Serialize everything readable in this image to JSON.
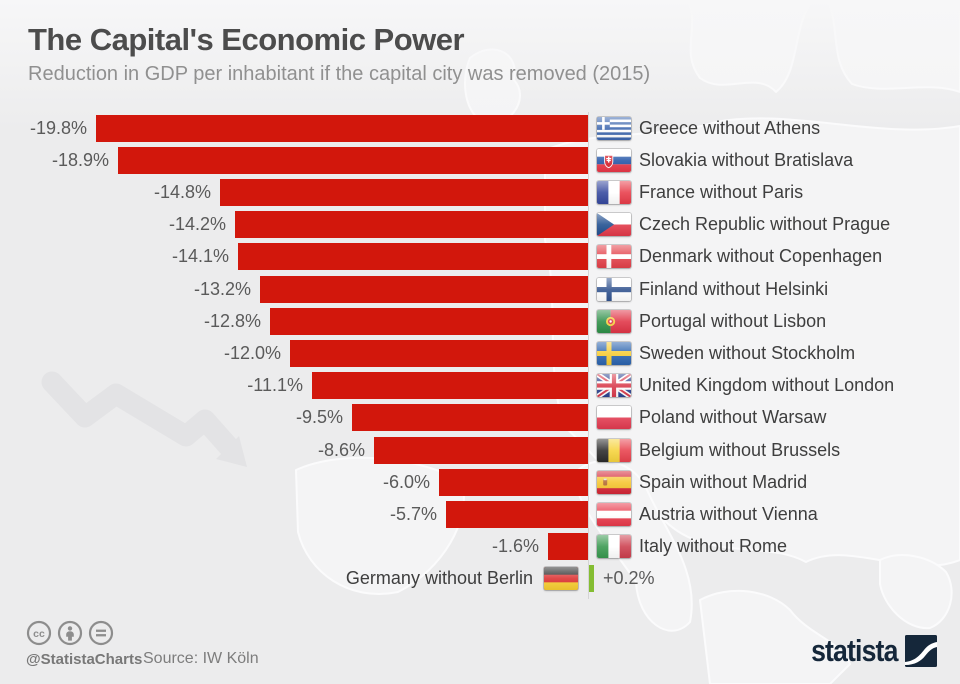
{
  "header": {
    "title": "The Capital's Economic Power",
    "subtitle": "Reduction in GDP per inhabitant if the capital city was removed (2015)"
  },
  "chart_data": {
    "type": "bar",
    "orientation": "horizontal",
    "unit": "%",
    "xlim": [
      -20.5,
      1
    ],
    "grid": false,
    "legend": false,
    "categories": [
      "Greece without Athens",
      "Slovakia without Bratislava",
      "France without Paris",
      "Czech Republic without Prague",
      "Denmark without Copenhagen",
      "Finland without Helsinki",
      "Portugal without Lisbon",
      "Sweden without Stockholm",
      "United Kingdom without London",
      "Poland without Warsaw",
      "Belgium without Brussels",
      "Spain without Madrid",
      "Austria without Vienna",
      "Italy without Rome",
      "Germany without Berlin"
    ],
    "values": [
      -19.8,
      -18.9,
      -14.8,
      -14.2,
      -14.1,
      -13.2,
      -12.8,
      -12.0,
      -11.1,
      -9.5,
      -8.6,
      -6.0,
      -5.7,
      -1.6,
      0.2
    ],
    "value_labels": [
      "-19.8%",
      "-18.9%",
      "-14.8%",
      "-14.2%",
      "-14.1%",
      "-13.2%",
      "-12.8%",
      "-12.0%",
      "-11.1%",
      "-9.5%",
      "-8.6%",
      "-6.0%",
      "-5.7%",
      "-1.6%",
      "+0.2%"
    ],
    "flags": [
      "greece",
      "slovakia",
      "france",
      "czech-republic",
      "denmark",
      "finland",
      "portugal",
      "sweden",
      "united-kingdom",
      "poland",
      "belgium",
      "spain",
      "austria",
      "italy",
      "germany"
    ],
    "negative_color": "#d2170c",
    "positive_color": "#84bd32",
    "axis_color": "#d4d4d5"
  },
  "footer": {
    "license_icons": [
      "cc-icon",
      "attribution-icon",
      "nd-icon"
    ],
    "cc_text": "cc",
    "handle": "@StatistaCharts",
    "source": "Source: IW Köln",
    "brand": {
      "name": "statista",
      "logo": "statista-swoosh-icon"
    }
  }
}
